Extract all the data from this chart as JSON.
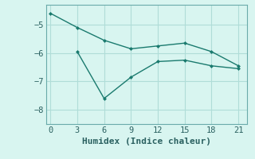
{
  "line1_x": [
    0,
    3,
    6,
    9,
    12,
    15,
    18,
    21
  ],
  "line1_y": [
    -4.6,
    -5.1,
    -5.55,
    -5.85,
    -5.75,
    -5.65,
    -5.95,
    -6.45
  ],
  "line2_x": [
    3,
    6,
    9,
    12,
    15,
    18,
    21
  ],
  "line2_y": [
    -5.95,
    -7.6,
    -6.85,
    -6.3,
    -6.25,
    -6.45,
    -6.55
  ],
  "line_color": "#1a7a6e",
  "bg_color": "#d8f5f0",
  "grid_color": "#b0ddd8",
  "xlabel": "Humidex (Indice chaleur)",
  "xlim": [
    -0.5,
    22
  ],
  "ylim": [
    -8.5,
    -4.3
  ],
  "xticks": [
    0,
    3,
    6,
    9,
    12,
    15,
    18,
    21
  ],
  "yticks": [
    -8,
    -7,
    -6,
    -5
  ],
  "font_color": "#2a6060",
  "tick_font_size": 7.5,
  "xlabel_font_size": 8
}
